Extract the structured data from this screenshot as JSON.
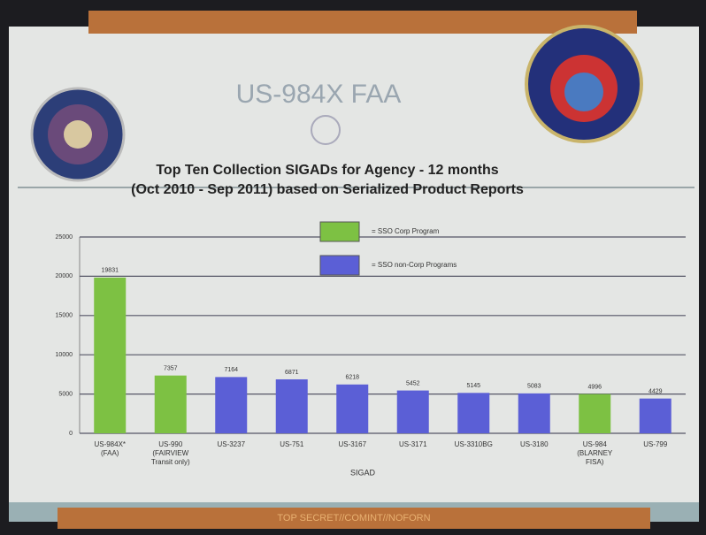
{
  "slide_title": "US-984X  FAA",
  "classification": "TOP SECRET//COMINT//NOFORN",
  "chart_data": {
    "type": "bar",
    "title": "Top Ten Collection SIGADs for Agency - 12 months",
    "subtitle": "(Oct 2010 - Sep 2011) based on Serialized Product Reports",
    "x_label": "SIGAD",
    "categories": [
      "US-984X*\n(FAA)",
      "US-990\n(FAIRVIEW\nTransit only)",
      "US-3237",
      "US-751",
      "US-3167",
      "US-3171",
      "US-3310BG",
      "US-3180",
      "US-984\n(BLARNEY\nFISA)",
      "US-799"
    ],
    "series": [
      {
        "name": "= SSO Corp Program",
        "color": "#7dc143",
        "values": [
          19831,
          7357,
          null,
          null,
          null,
          null,
          null,
          null,
          4996,
          null
        ]
      },
      {
        "name": "= SSO non-Corp Programs",
        "color": "#5b5fd6",
        "values": [
          null,
          null,
          7164,
          6871,
          6218,
          5452,
          5145,
          5083,
          null,
          4429
        ]
      }
    ],
    "ylim": [
      0,
      25000
    ],
    "yticks": [
      0,
      5000,
      10000,
      15000,
      20000,
      25000
    ],
    "grid": true
  }
}
